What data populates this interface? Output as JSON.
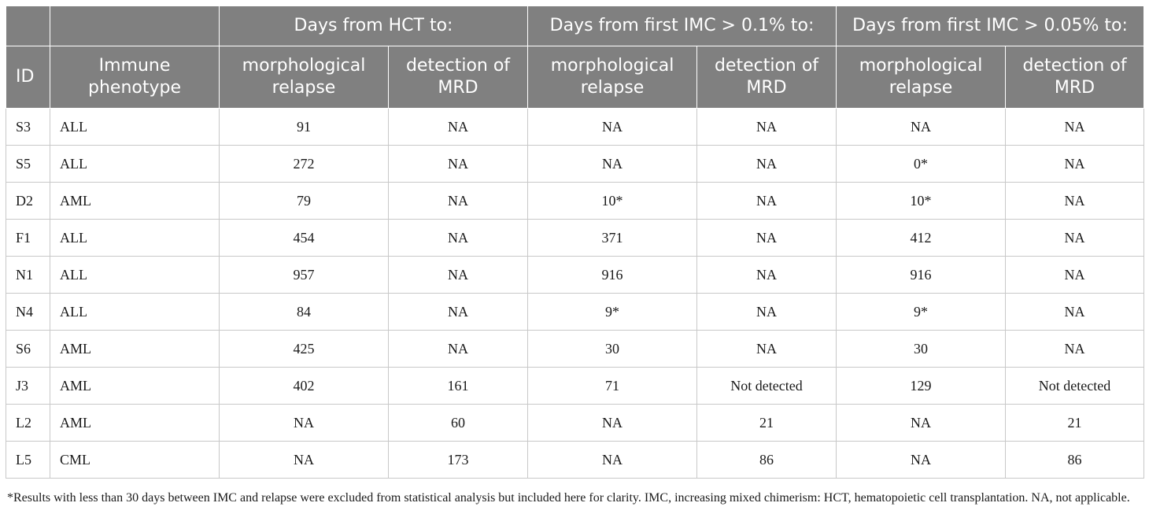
{
  "table": {
    "group_headers": [
      "Days from HCT to:",
      "Days from first IMC > 0.1% to:",
      "Days from first IMC > 0.05% to:"
    ],
    "col_headers": {
      "id": "ID",
      "phenotype": "Immune phenotype",
      "sub": [
        "morphological relapse",
        "detection of MRD",
        "morphological relapse",
        "detection of MRD",
        "morphological relapse",
        "detection of MRD"
      ]
    },
    "rows": [
      {
        "id": "S3",
        "phenotype": "ALL",
        "values": [
          "91",
          "NA",
          "NA",
          "NA",
          "NA",
          "NA"
        ]
      },
      {
        "id": "S5",
        "phenotype": "ALL",
        "values": [
          "272",
          "NA",
          "NA",
          "NA",
          "0*",
          "NA"
        ]
      },
      {
        "id": "D2",
        "phenotype": "AML",
        "values": [
          "79",
          "NA",
          "10*",
          "NA",
          "10*",
          "NA"
        ]
      },
      {
        "id": "F1",
        "phenotype": "ALL",
        "values": [
          "454",
          "NA",
          "371",
          "NA",
          "412",
          "NA"
        ]
      },
      {
        "id": "N1",
        "phenotype": "ALL",
        "values": [
          "957",
          "NA",
          "916",
          "NA",
          "916",
          "NA"
        ]
      },
      {
        "id": "N4",
        "phenotype": "ALL",
        "values": [
          "84",
          "NA",
          "9*",
          "NA",
          "9*",
          "NA"
        ]
      },
      {
        "id": "S6",
        "phenotype": "AML",
        "values": [
          "425",
          "NA",
          "30",
          "NA",
          "30",
          "NA"
        ]
      },
      {
        "id": "J3",
        "phenotype": "AML",
        "values": [
          "402",
          "161",
          "71",
          "Not detected",
          "129",
          "Not detected"
        ]
      },
      {
        "id": "L2",
        "phenotype": "AML",
        "values": [
          "NA",
          "60",
          "NA",
          "21",
          "NA",
          "21"
        ]
      },
      {
        "id": "L5",
        "phenotype": "CML",
        "values": [
          "NA",
          "173",
          "NA",
          "86",
          "NA",
          "86"
        ]
      }
    ]
  },
  "footnote": "*Results with less than 30 days between IMC and relapse were excluded from statistical analysis but included here for clarity. IMC, increasing mixed chimerism: HCT, hematopoietic cell transplantation. NA, not applicable."
}
